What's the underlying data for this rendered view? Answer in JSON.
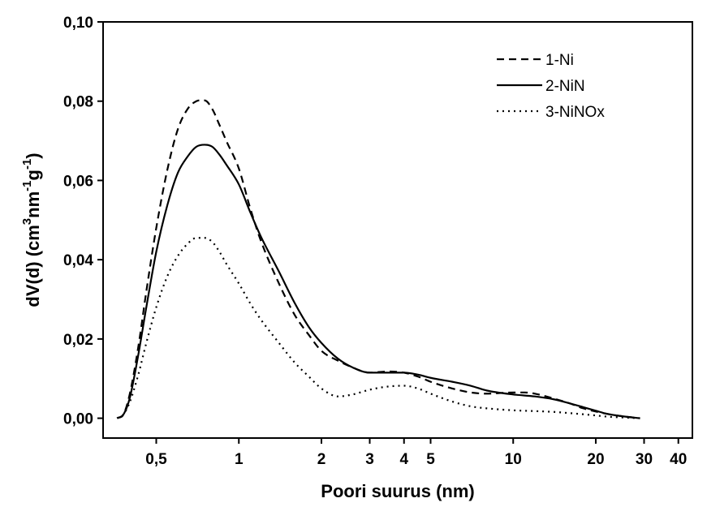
{
  "chart_data": {
    "type": "line",
    "title": "",
    "xlabel": "Poori suurus (nm)",
    "ylabel": {
      "parts": [
        {
          "text": "dV(d) (cm",
          "sup": false
        },
        {
          "text": "3",
          "sup": true
        },
        {
          "text": "nm",
          "sup": false
        },
        {
          "text": "-1",
          "sup": true
        },
        {
          "text": "g",
          "sup": false
        },
        {
          "text": "-1",
          "sup": true
        },
        {
          "text": ")",
          "sup": false
        }
      ]
    },
    "x_scale": "log",
    "xlim": [
      0.32,
      45
    ],
    "ylim": [
      -0.005,
      0.1
    ],
    "x_ticks": [
      {
        "value": 0.5,
        "label": "0,5"
      },
      {
        "value": 1,
        "label": "1"
      },
      {
        "value": 2,
        "label": "2"
      },
      {
        "value": 3,
        "label": "3"
      },
      {
        "value": 4,
        "label": "4"
      },
      {
        "value": 5,
        "label": "5"
      },
      {
        "value": 10,
        "label": "10"
      },
      {
        "value": 20,
        "label": "20"
      },
      {
        "value": 30,
        "label": "30"
      },
      {
        "value": 40,
        "label": "40"
      }
    ],
    "y_ticks": [
      {
        "value": 0.0,
        "label": "0,00"
      },
      {
        "value": 0.02,
        "label": "0,02"
      },
      {
        "value": 0.04,
        "label": "0,04"
      },
      {
        "value": 0.06,
        "label": "0,06"
      },
      {
        "value": 0.08,
        "label": "0,08"
      },
      {
        "value": 0.1,
        "label": "0,10"
      }
    ],
    "grid": false,
    "legend_position": "top-right",
    "series": [
      {
        "name": "1-Ni",
        "style": "dashed",
        "color": "#000000",
        "x": [
          0.36,
          0.38,
          0.4,
          0.43,
          0.46,
          0.5,
          0.55,
          0.6,
          0.65,
          0.7,
          0.75,
          0.8,
          0.85,
          0.9,
          1.0,
          1.1,
          1.2,
          1.4,
          1.6,
          1.8,
          2.0,
          2.3,
          2.6,
          3.0,
          3.5,
          4.0,
          4.5,
          5.0,
          6.0,
          7.0,
          8.0,
          10.0,
          11.0,
          12.0,
          14.0,
          16.0,
          18.0,
          20.0,
          22.0,
          25.0,
          29.0
        ],
        "y": [
          0.0,
          0.001,
          0.006,
          0.018,
          0.032,
          0.048,
          0.063,
          0.073,
          0.078,
          0.08,
          0.0802,
          0.078,
          0.074,
          0.07,
          0.063,
          0.053,
          0.045,
          0.034,
          0.026,
          0.021,
          0.017,
          0.0145,
          0.0128,
          0.0115,
          0.0118,
          0.0115,
          0.0105,
          0.0092,
          0.0075,
          0.0065,
          0.0062,
          0.0065,
          0.0065,
          0.0062,
          0.005,
          0.0038,
          0.0025,
          0.0017,
          0.0011,
          0.0005,
          0.0
        ]
      },
      {
        "name": "2-NiN",
        "style": "solid",
        "color": "#000000",
        "x": [
          0.36,
          0.38,
          0.4,
          0.43,
          0.46,
          0.5,
          0.55,
          0.6,
          0.65,
          0.7,
          0.75,
          0.8,
          0.85,
          0.9,
          1.0,
          1.1,
          1.2,
          1.4,
          1.6,
          1.8,
          2.0,
          2.3,
          2.6,
          3.0,
          3.5,
          4.0,
          4.5,
          5.0,
          6.0,
          7.0,
          8.0,
          10.0,
          12.0,
          14.0,
          16.0,
          18.0,
          20.0,
          22.0,
          25.0,
          29.0
        ],
        "y": [
          0.0,
          0.001,
          0.005,
          0.016,
          0.028,
          0.042,
          0.054,
          0.062,
          0.066,
          0.0685,
          0.069,
          0.0685,
          0.0665,
          0.064,
          0.059,
          0.052,
          0.046,
          0.037,
          0.029,
          0.023,
          0.019,
          0.015,
          0.0128,
          0.0115,
          0.0115,
          0.0115,
          0.011,
          0.0102,
          0.0092,
          0.0082,
          0.007,
          0.006,
          0.0055,
          0.0048,
          0.0038,
          0.0028,
          0.0019,
          0.0011,
          0.0005,
          0.0
        ]
      },
      {
        "name": "3-NiNOx",
        "style": "dotted",
        "color": "#000000",
        "x": [
          0.36,
          0.38,
          0.4,
          0.43,
          0.46,
          0.5,
          0.55,
          0.6,
          0.65,
          0.7,
          0.75,
          0.8,
          0.85,
          0.9,
          1.0,
          1.1,
          1.2,
          1.4,
          1.6,
          1.8,
          2.0,
          2.3,
          2.6,
          3.0,
          3.5,
          4.0,
          4.5,
          5.0,
          6.0,
          7.0,
          8.0,
          10.0,
          12.0,
          14.0,
          16.0,
          18.0,
          20.0,
          22.0,
          25.0,
          29.0
        ],
        "y": [
          0.0,
          0.001,
          0.004,
          0.011,
          0.019,
          0.028,
          0.036,
          0.041,
          0.044,
          0.0455,
          0.0455,
          0.0445,
          0.042,
          0.039,
          0.034,
          0.029,
          0.025,
          0.019,
          0.014,
          0.0105,
          0.0075,
          0.0055,
          0.006,
          0.0072,
          0.008,
          0.0082,
          0.0075,
          0.0062,
          0.0042,
          0.003,
          0.0025,
          0.002,
          0.0018,
          0.0016,
          0.0013,
          0.001,
          0.0007,
          0.0004,
          0.0002,
          0.0
        ]
      }
    ]
  }
}
